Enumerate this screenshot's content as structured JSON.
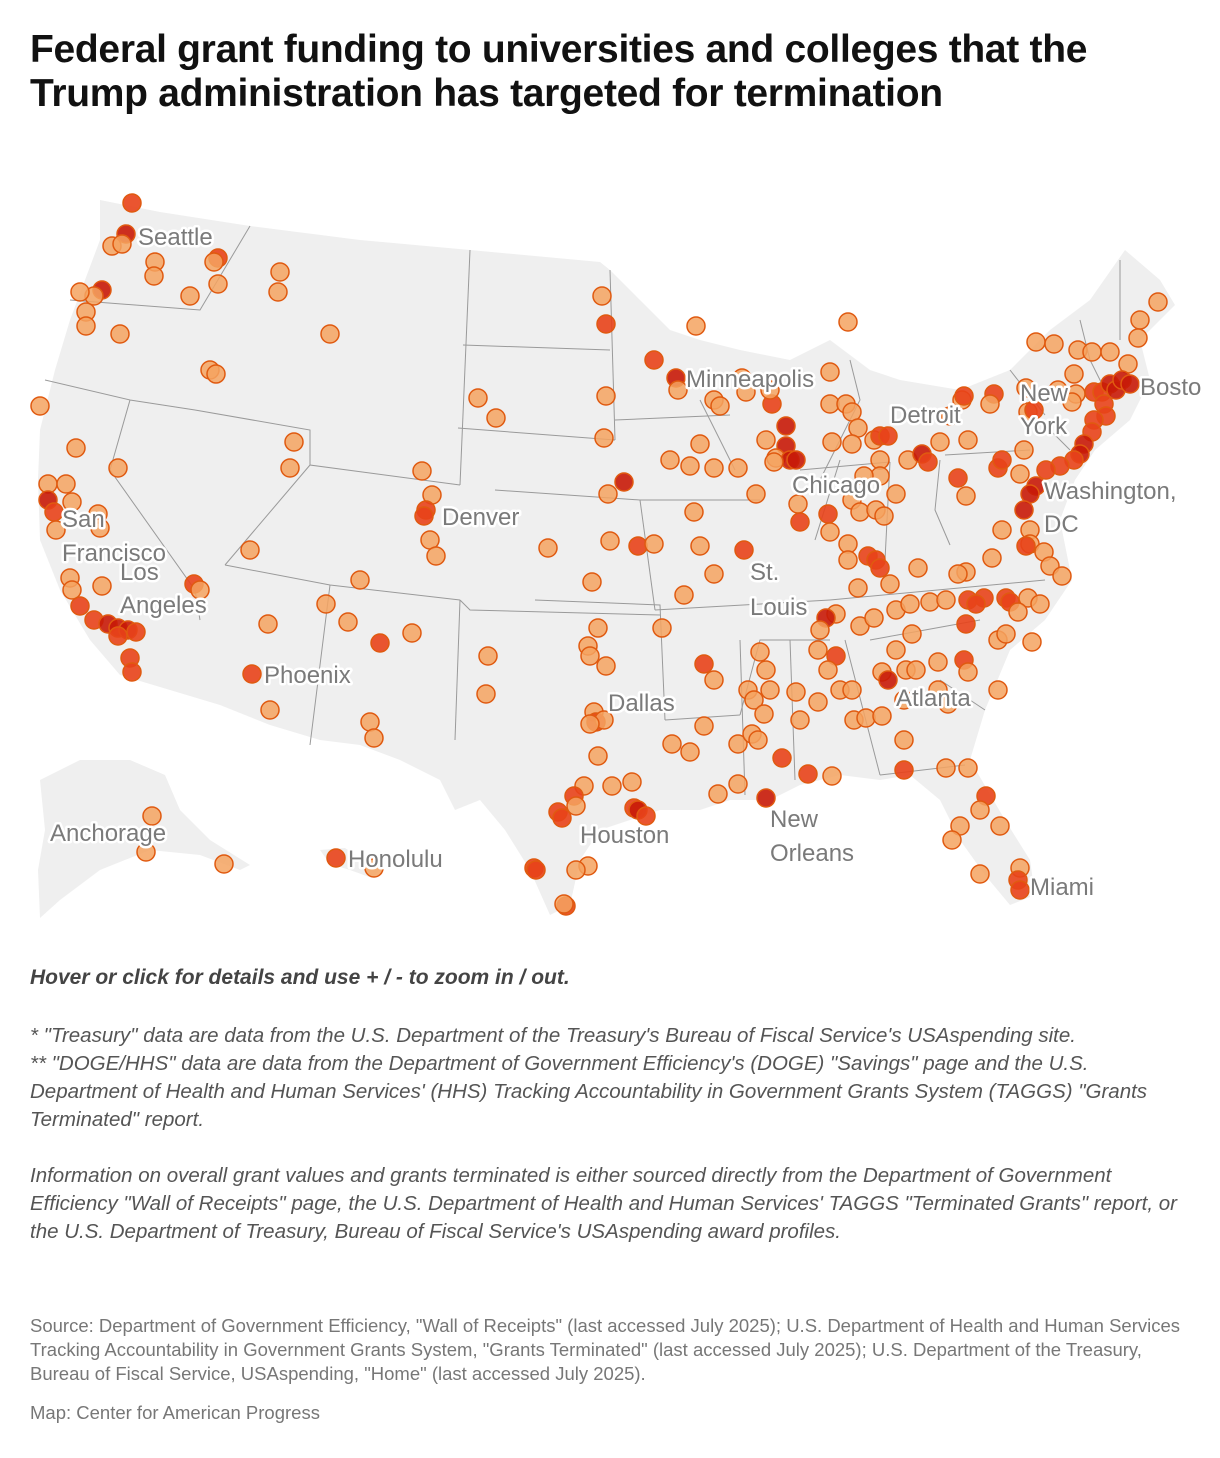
{
  "title": "Federal grant funding to universities and colleges that the Trump administration has targeted for termination",
  "map": {
    "land_color": "#efefef",
    "border_color": "#9a9a9a",
    "marker_colors": {
      "low": "#f4a360",
      "mid": "#e8431a",
      "high": "#c81a08",
      "stroke": "#e05a10"
    },
    "city_labels": {
      "seattle": "Seattle",
      "san_francisco_1": "San",
      "san_francisco_2": "Francisco",
      "los_angeles_1": "Los",
      "los_angeles_2": "Angeles",
      "phoenix": "Phoenix",
      "denver": "Denver",
      "minneapolis": "Minneapolis",
      "chicago": "Chicago",
      "st_louis_1": "St.",
      "st_louis_2": "Louis",
      "dallas": "Dallas",
      "houston": "Houston",
      "new_orleans_1": "New",
      "new_orleans_2": "Orleans",
      "atlanta": "Atlanta",
      "miami": "Miami",
      "detroit": "Detroit",
      "new_york_1": "New",
      "new_york_2": "York",
      "boston": "Bosto",
      "washington_1": "Washington,",
      "washington_2": "DC",
      "anchorage": "Anchorage",
      "honolulu": "Honolulu"
    }
  },
  "instructions": "Hover or click for details and use + / - to zoom in / out.",
  "notes": {
    "treasury": "* \"Treasury\" data are data from the U.S. Department of the Treasury's Bureau of Fiscal Service's USAspending site.",
    "doge": "** \"DOGE/HHS\" data are data from the Department of Government Efficiency's (DOGE) \"Savings\" page and the U.S. Department of Health and Human Services' (HHS) Tracking Accountability in Government Grants System (TAGGS) \"Grants Terminated\" report.",
    "info": "Information on overall grant values and grants terminated is either sourced directly from the Department of Government Efficiency \"Wall of Receipts\" page, the U.S. Department of Health and Human Services' TAGGS \"Terminated Grants\" report, or the U.S. Department of Treasury, Bureau of Fiscal Service's USAspending award profiles."
  },
  "source": "Source: Department of Government Efficiency, \"Wall of Receipts\" (last accessed July 2025); U.S. Department of Health and Human Services Tracking Accountability in Government Grants System, \"Grants Terminated\" (last accessed July 2025); U.S. Department of the Treasury, Bureau of Fiscal Service, USAspending, \"Home\" (last accessed July 2025).",
  "credit": "Map: Center for American Progress"
}
